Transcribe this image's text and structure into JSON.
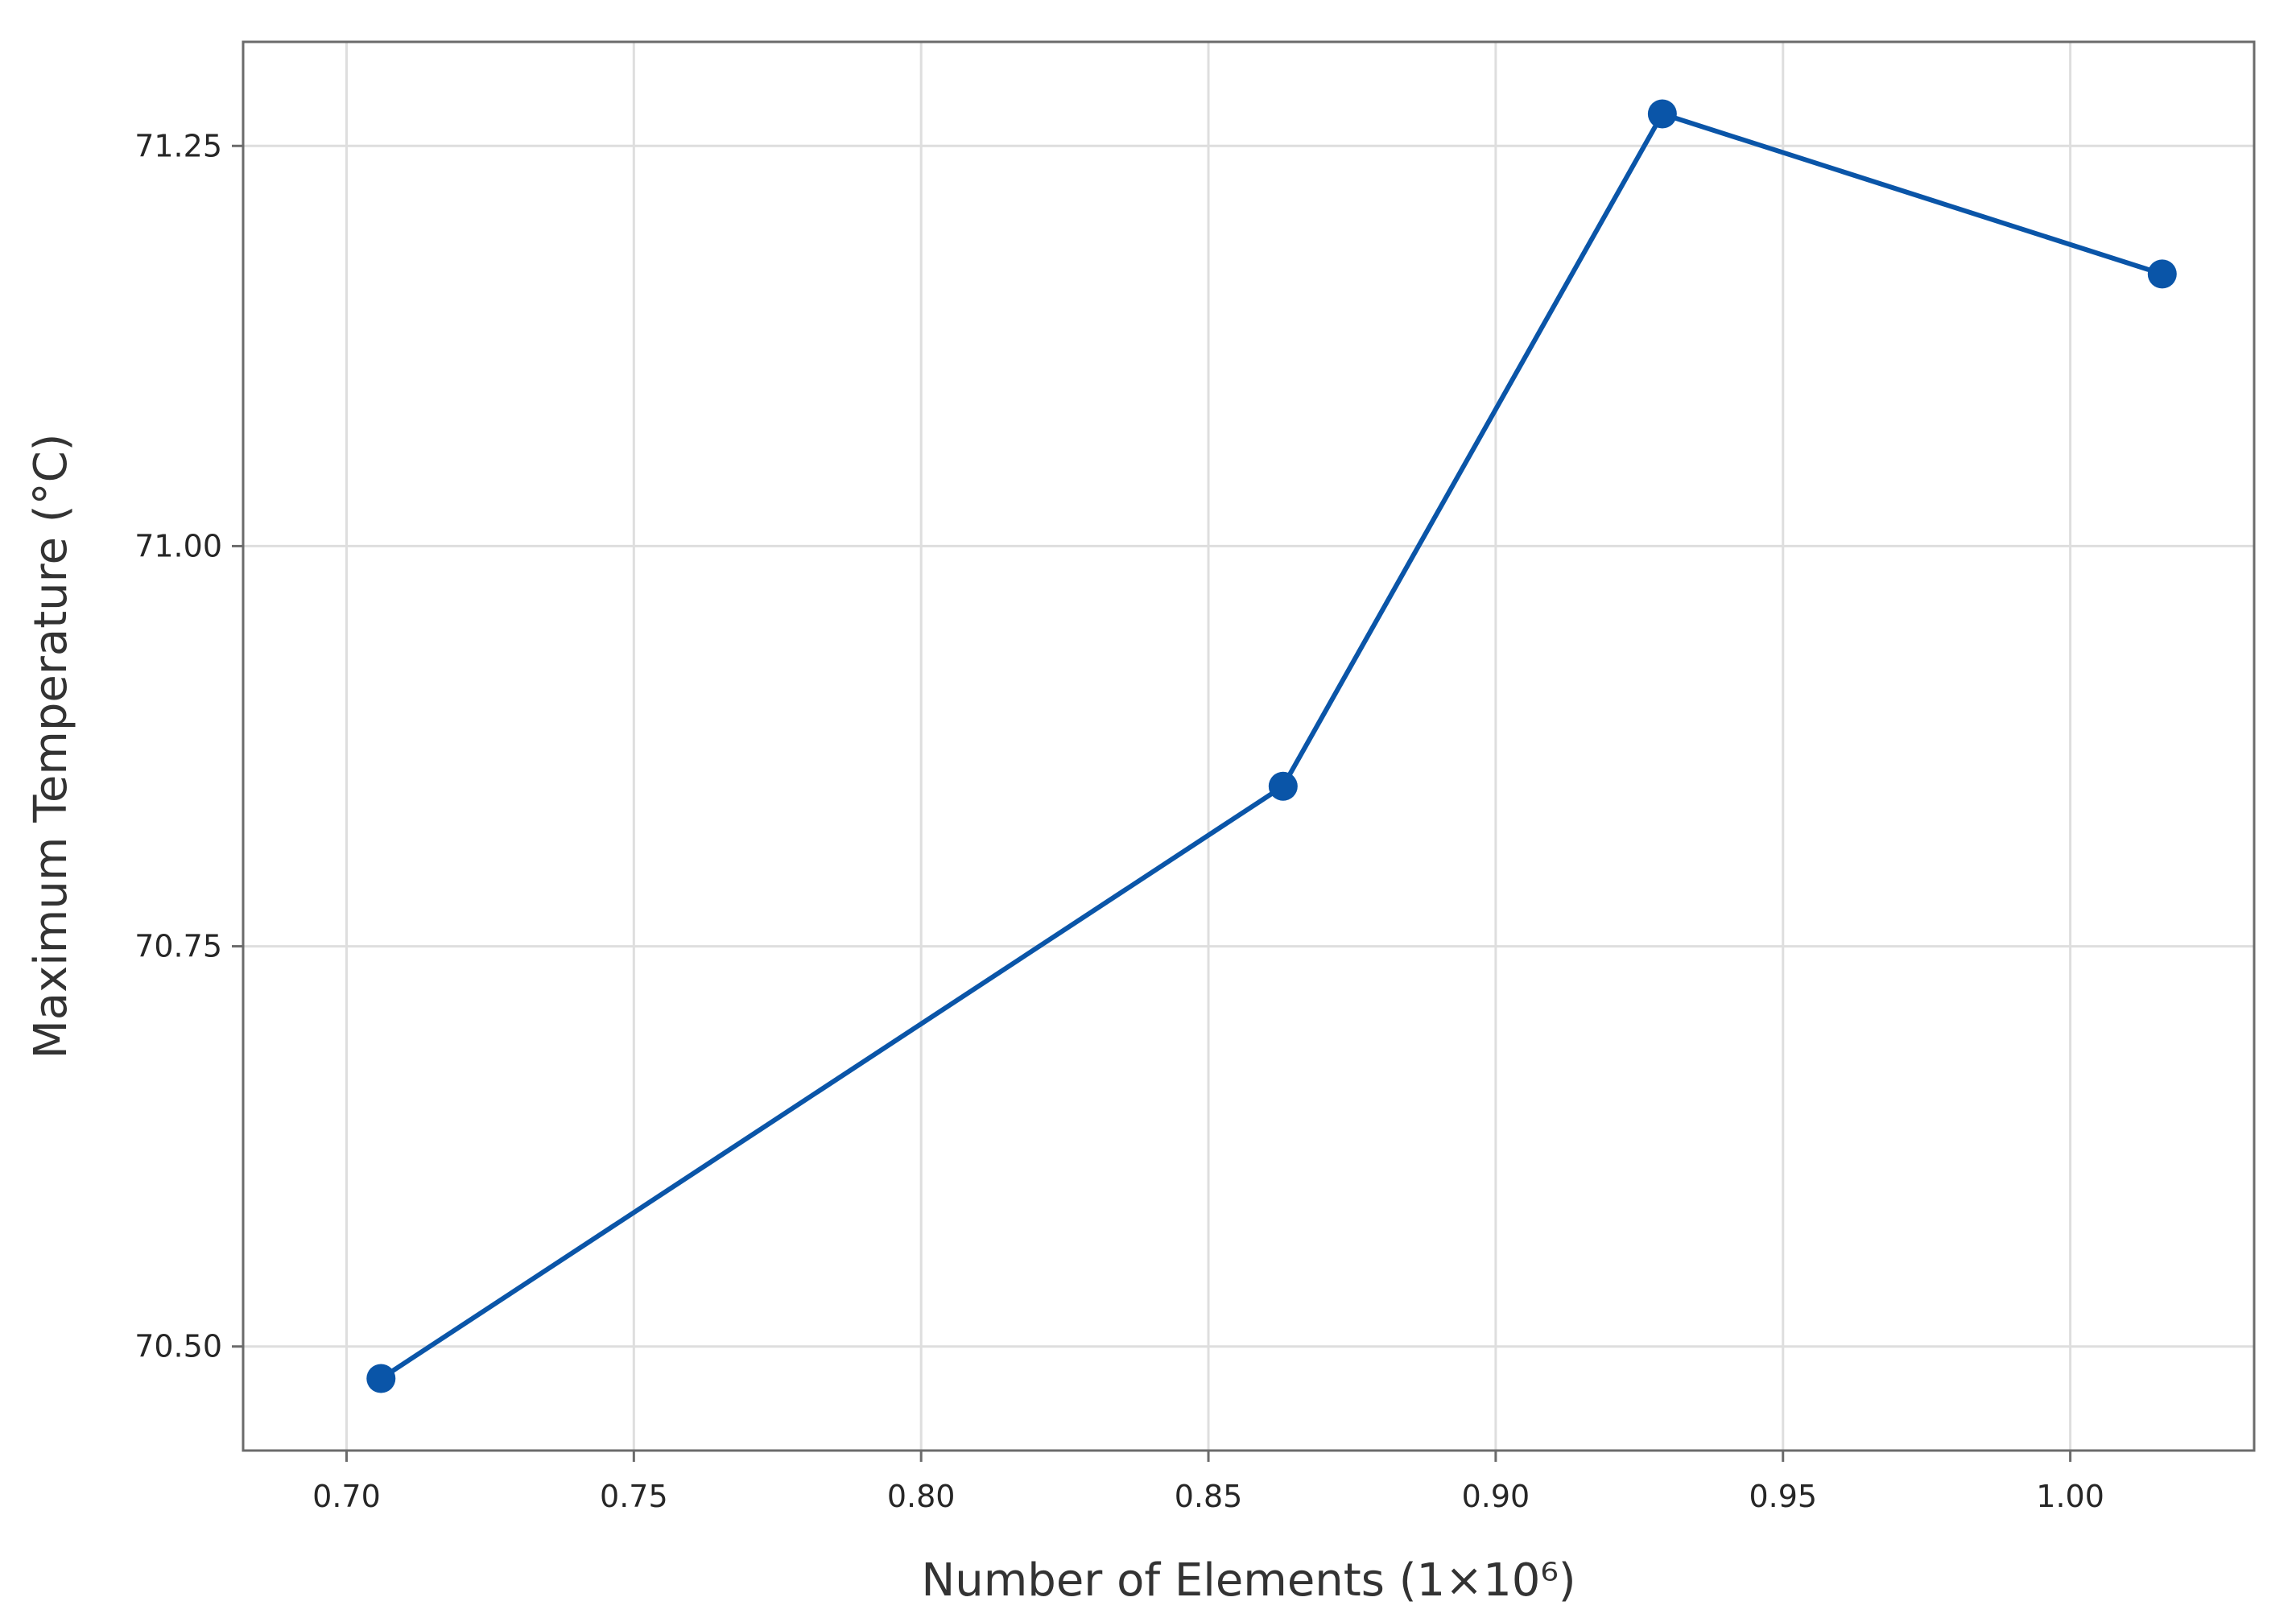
{
  "chart_data": {
    "type": "line",
    "title": "",
    "xlabel": "Number of Elements (1×10⁶)",
    "ylabel": "Maximum Temperature (°C)",
    "xlim": [
      0.682,
      1.032
    ],
    "ylim": [
      70.435,
      71.315
    ],
    "x_ticks": [
      {
        "value": 0.7,
        "label": "0.70"
      },
      {
        "value": 0.75,
        "label": "0.75"
      },
      {
        "value": 0.8,
        "label": "0.80"
      },
      {
        "value": 0.85,
        "label": "0.85"
      },
      {
        "value": 0.9,
        "label": "0.90"
      },
      {
        "value": 0.95,
        "label": "0.95"
      },
      {
        "value": 1.0,
        "label": "1.00"
      }
    ],
    "y_ticks": [
      {
        "value": 70.5,
        "label": "70.50"
      },
      {
        "value": 70.75,
        "label": "70.75"
      },
      {
        "value": 71.0,
        "label": "71.00"
      },
      {
        "value": 71.25,
        "label": "71.25"
      }
    ],
    "grid": true,
    "series": [
      {
        "color": "#0a55a8",
        "x": [
          0.706,
          0.863,
          0.929,
          1.016
        ],
        "y": [
          70.48,
          70.85,
          71.27,
          71.17
        ]
      }
    ]
  }
}
